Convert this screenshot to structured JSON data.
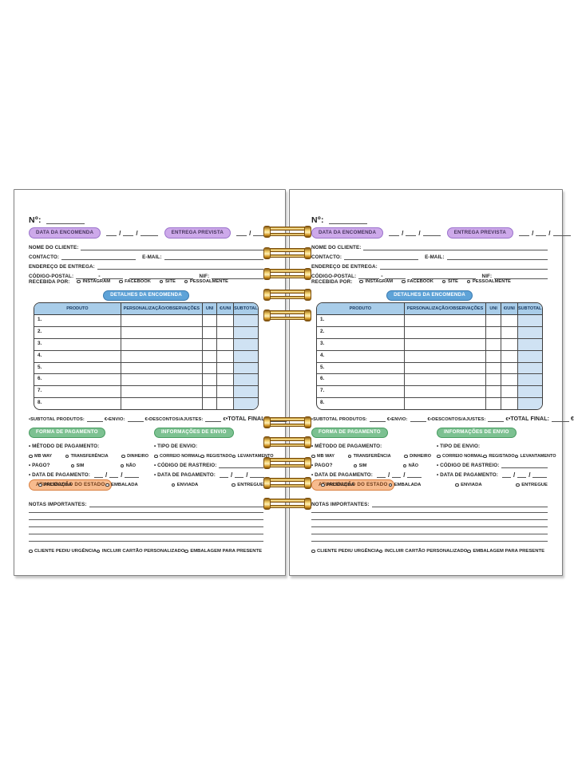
{
  "colors": {
    "purple_bg": "#cda9ea",
    "purple_border": "#9b73cc",
    "purple_text": "#46345c",
    "blue_badge_bg": "#5ea3d8",
    "blue_badge_border": "#3a7bb0",
    "blue_badge_text": "#ffffff",
    "table_header_bg": "#a9cde9",
    "table_header_text": "#1b3c63",
    "subtotal_col_bg": "#cfe2f3",
    "green_bg": "#7cc191",
    "green_border": "#479c60",
    "green_text": "#ffffff",
    "orange_bg": "#f7bb8e",
    "orange_border": "#da8040",
    "orange_text": "#6e3c1b",
    "coil_gold": "#e9b144",
    "coil_gold_dark": "#7a4d0c",
    "coil_gold_light": "#fdf0b8",
    "ink": "#222222",
    "line": "#555555"
  },
  "page": {
    "number_label": "Nº:",
    "date_separator": "/",
    "postal_separator": "-",
    "order_date_badge": "DATA DA ENCOMENDA",
    "delivery_badge": "ENTREGA PREVISTA",
    "client_name_label": "NOME DO CLIENTE:",
    "contact_label": "CONTACTO:",
    "email_label": "E-MAIL:",
    "address_label": "ENDEREÇO DE ENTREGA:",
    "postal_label": "CÓDIGO-POSTAL:",
    "nif_label": "NIF:",
    "received_by_label": "RECEBIDA POR:",
    "received_options": [
      "INSTAGRAM",
      "FACEBOOK",
      "SITE",
      "PESSOALMENTE"
    ],
    "details_badge": "DETALHES DA ENCOMENDA",
    "table": {
      "headers": [
        "PRODUTO",
        "PERSONALIZAÇÃO/OBSERVAÇÕES",
        "UNI",
        "€/UNI",
        "SUBTOTAL (€)"
      ],
      "row_numbers": [
        "1.",
        "2.",
        "3.",
        "4.",
        "5.",
        "6.",
        "7.",
        "8."
      ]
    },
    "totals": {
      "subtotal_label": "•SUBTOTAL PRODUTOS:",
      "shipping_label": "•ENVIO:",
      "discount_label": "•DESCONTOS/AJUSTES:",
      "total_label": "•TOTAL FINAL:",
      "euro": "€"
    },
    "payment": {
      "badge": "FORMA DE PAGAMENTO",
      "method_label": "• MÉTODO DE PAGAMENTO:",
      "methods": [
        "MB WAY",
        "TRANSFERÊNCIA",
        "DINHEIRO"
      ],
      "paid_label": "• PAGO?",
      "paid_options": [
        "SIM",
        "NÃO"
      ],
      "date_label": "• DATA DE PAGAMENTO:"
    },
    "shipping": {
      "badge": "INFORMAÇÕES DE ENVIO",
      "type_label": "• TIPO DE ENVIO:",
      "types": [
        "CORREIO NORMAL",
        "REGISTADO",
        "LEVANTAMENTO"
      ],
      "tracking_label": "• CÓDIGO DE RASTREIO:",
      "date_label": "• DATA DE PAGAMENTO:"
    },
    "status": {
      "badge": "ATUALIZAÇÃO DO ESTADO",
      "options": [
        "PRODUZIDA",
        "EMBALADA",
        "ENVIADA",
        "ENTREGUE"
      ]
    },
    "notes_label": "NOTAS IMPORTANTES:",
    "footer_options": [
      "CLIENTE PEDIU URGÊNCIA",
      "INCLUIR CARTÃO PERSONALIZADO",
      "EMBALAGEM PARA PRESENTE"
    ]
  }
}
